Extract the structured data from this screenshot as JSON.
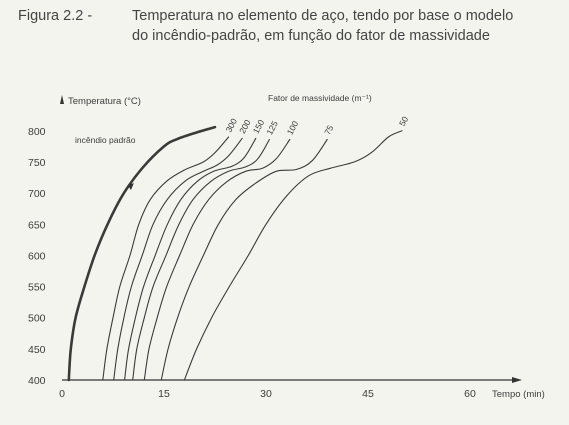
{
  "caption": {
    "label": "Figura 2.2 -",
    "line1": "Temperatura no elemento de aço, tendo por base o modelo",
    "line2": "do incêndio-padrão, em função do fator de massividade"
  },
  "chart_data": {
    "type": "line",
    "title": "",
    "xlabel": "Tempo (min)",
    "ylabel": "Temperatura (°C)",
    "legend_title": "Fator de massividade (m⁻¹)",
    "xlim": [
      0,
      68
    ],
    "ylim": [
      400,
      800
    ],
    "x_ticks": [
      0,
      15,
      30,
      45,
      60
    ],
    "y_ticks": [
      400,
      450,
      500,
      550,
      600,
      650,
      700,
      750,
      800
    ],
    "grid": false,
    "series": [
      {
        "name": "incêndio padrão",
        "bold": true,
        "x": [
          1.0,
          1.3,
          2.0,
          3.3,
          4.8,
          6.7,
          9.1,
          11.8,
          15.0,
          17.0,
          20.0,
          22.5
        ],
        "y": [
          400,
          450,
          500,
          550,
          600,
          650,
          700,
          740,
          775,
          787,
          798,
          806
        ]
      },
      {
        "name": "300",
        "x": [
          6.0,
          6.6,
          7.5,
          8.5,
          10.0,
          11.3,
          13.0,
          15.5,
          18.0,
          20.8,
          22.5,
          24.5
        ],
        "y": [
          400,
          450,
          500,
          550,
          600,
          650,
          690,
          720,
          737,
          750,
          765,
          790
        ]
      },
      {
        "name": "200",
        "x": [
          7.6,
          8.2,
          9.1,
          10.2,
          11.8,
          13.4,
          15.5,
          18.2,
          20.8,
          22.8,
          24.5,
          26.5
        ],
        "y": [
          400,
          450,
          500,
          550,
          600,
          650,
          690,
          720,
          735,
          745,
          760,
          788
        ]
      },
      {
        "name": "150",
        "x": [
          9.2,
          9.8,
          10.8,
          12.0,
          13.7,
          15.5,
          17.5,
          19.8,
          22.3,
          25.0,
          26.8,
          28.5
        ],
        "y": [
          400,
          450,
          500,
          550,
          600,
          650,
          690,
          718,
          735,
          743,
          757,
          788
        ]
      },
      {
        "name": "125",
        "x": [
          10.4,
          11.0,
          12.1,
          13.4,
          15.3,
          17.2,
          19.3,
          21.8,
          24.5,
          27.0,
          28.8,
          30.5
        ],
        "y": [
          400,
          450,
          500,
          550,
          600,
          650,
          690,
          718,
          735,
          742,
          755,
          786
        ]
      },
      {
        "name": "100",
        "x": [
          12.1,
          12.8,
          14.0,
          15.4,
          17.3,
          19.3,
          21.6,
          24.2,
          27.0,
          29.5,
          31.5,
          33.5
        ],
        "y": [
          400,
          450,
          500,
          550,
          600,
          650,
          690,
          718,
          735,
          740,
          755,
          786
        ]
      },
      {
        "name": "75",
        "x": [
          14.6,
          15.6,
          17.0,
          18.7,
          20.8,
          23.0,
          25.6,
          28.5,
          31.5,
          34.5,
          36.8,
          39.0
        ],
        "y": [
          400,
          450,
          500,
          550,
          600,
          650,
          690,
          716,
          735,
          738,
          752,
          786
        ]
      },
      {
        "name": "50",
        "x": [
          18.0,
          19.8,
          22.0,
          24.6,
          27.4,
          30.0,
          33.0,
          36.3,
          39.5,
          43.0,
          45.5,
          48.0,
          50.0
        ],
        "y": [
          400,
          450,
          500,
          550,
          600,
          650,
          695,
          728,
          740,
          750,
          765,
          790,
          800
        ]
      }
    ]
  }
}
